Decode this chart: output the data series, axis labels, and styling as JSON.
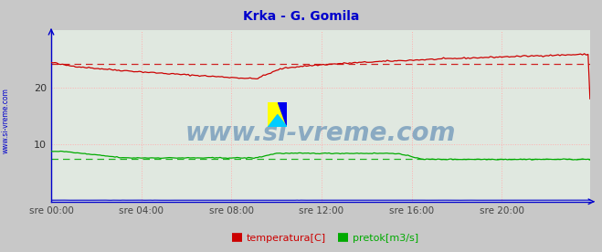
{
  "title": "Krka - G. Gomila",
  "bg_color": "#c8c8c8",
  "plot_bg_color": "#e0e8e0",
  "grid_color": "#ffb0b0",
  "axis_color": "#0000cc",
  "title_color": "#0000cc",
  "watermark_text": "www.si-vreme.com",
  "watermark_color": "#4477aa",
  "ylim": [
    0,
    30
  ],
  "yticks": [
    10,
    20
  ],
  "xtick_labels": [
    "sre 00:00",
    "sre 04:00",
    "sre 08:00",
    "sre 12:00",
    "sre 16:00",
    "sre 20:00"
  ],
  "n_points": 288,
  "temp_avg": 24.1,
  "pretok_avg": 7.55,
  "visina_val": 0.25,
  "temp_color": "#cc0000",
  "pretok_color": "#00aa00",
  "visina_color": "#0000cc",
  "legend_temp_label": "temperatura[C]",
  "legend_pretok_label": "pretok[m3/s]",
  "sidebar_text": "www.si-vreme.com",
  "sidebar_color": "#0000cc"
}
